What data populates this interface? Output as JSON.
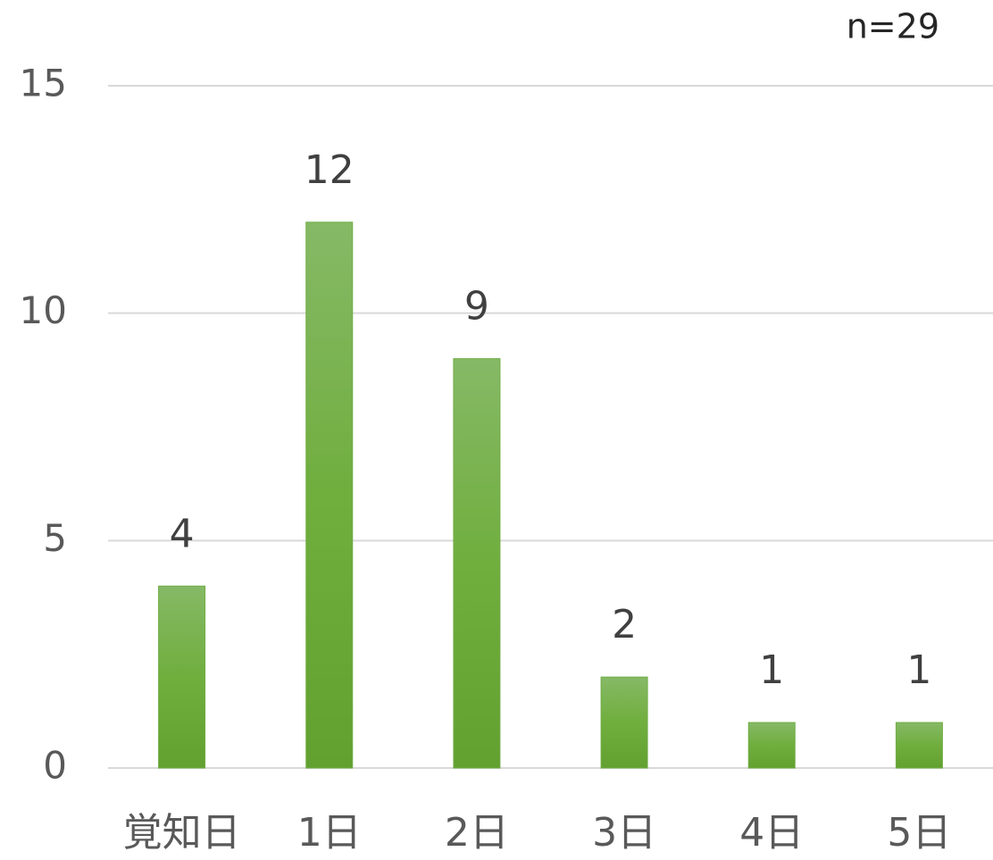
{
  "chart_data": {
    "type": "bar",
    "annotation": "n=29",
    "categories": [
      "覚知日",
      "1日",
      "2日",
      "3日",
      "4日",
      "5日"
    ],
    "values": [
      4,
      12,
      9,
      2,
      1,
      1
    ],
    "color": "#70ad47",
    "ylim": [
      0,
      15
    ],
    "yticks": [
      0,
      5,
      10,
      15
    ],
    "grid": true
  }
}
